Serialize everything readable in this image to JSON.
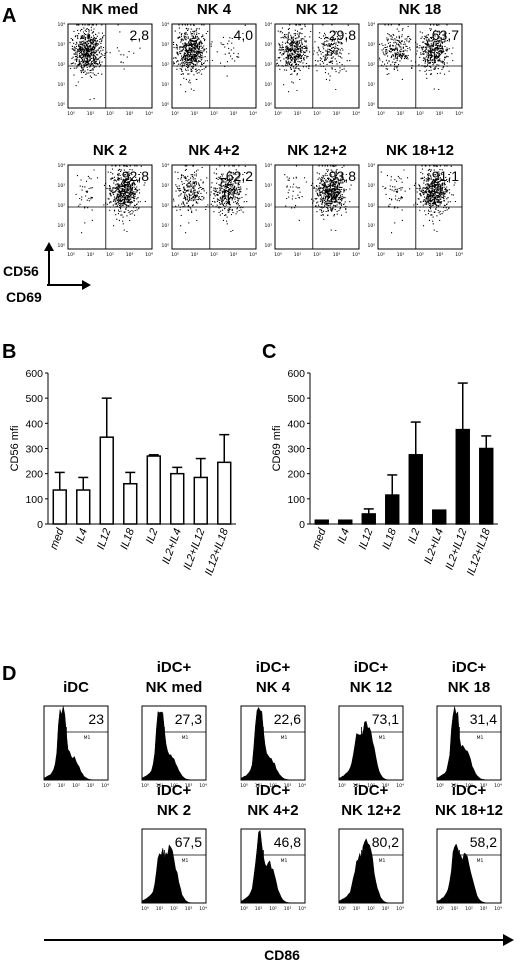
{
  "panel_letters": {
    "a": "A",
    "b": "B",
    "c": "C",
    "d": "D"
  },
  "chart_data": [
    {
      "type": "scatter",
      "panel": "A",
      "xlabel": "CD69",
      "ylabel": "CD56",
      "scale": "log",
      "tick_labels": [
        "10⁰",
        "10¹",
        "10²",
        "10³",
        "10⁴"
      ],
      "plots": [
        {
          "title": "NK med",
          "value": "2,8",
          "color": "#000000"
        },
        {
          "title": "NK 4",
          "value": "4,0",
          "color": "#000000"
        },
        {
          "title": "NK 12",
          "value": "29,8",
          "color": "#000000"
        },
        {
          "title": "NK 18",
          "value": "63,7",
          "color": "#000000"
        },
        {
          "title": "NK 2",
          "value": "92,8",
          "color": "#000000"
        },
        {
          "title": "NK 4+2",
          "value": "62,2",
          "color": "#000000"
        },
        {
          "title": "NK 12+2",
          "value": "93,8",
          "color": "#000000"
        },
        {
          "title": "NK 18+12",
          "value": "91,1",
          "color": "#000000"
        }
      ]
    },
    {
      "type": "bar",
      "panel": "B",
      "ylabel": "CD56 mfi",
      "categories": [
        "med",
        "IL4",
        "IL12",
        "IL18",
        "IL2",
        "IL2+IL4",
        "IL2+IL12",
        "IL12+IL18"
      ],
      "values": [
        135,
        135,
        345,
        160,
        270,
        200,
        185,
        245
      ],
      "errors": [
        70,
        50,
        155,
        45,
        5,
        25,
        75,
        110
      ],
      "ylim": [
        0,
        600
      ],
      "yticks": [
        0,
        100,
        200,
        300,
        400,
        500,
        600
      ],
      "bar_fill": "#ffffff",
      "bar_stroke": "#000000"
    },
    {
      "type": "bar",
      "panel": "C",
      "ylabel": "CD69 mfi",
      "categories": [
        "med",
        "IL4",
        "IL12",
        "IL18",
        "IL2",
        "IL2+IL4",
        "IL2+IL12",
        "IL12+IL18"
      ],
      "values": [
        15,
        15,
        40,
        115,
        275,
        55,
        375,
        300
      ],
      "errors": [
        0,
        0,
        20,
        80,
        130,
        0,
        185,
        50
      ],
      "ylim": [
        0,
        600
      ],
      "yticks": [
        0,
        100,
        200,
        300,
        400,
        500,
        600
      ],
      "bar_fill": "#000000",
      "bar_stroke": "#000000"
    },
    {
      "type": "histogram",
      "panel": "D",
      "xlabel": "CD86",
      "gate_label": "M1",
      "tick_labels": [
        "10⁰",
        "10¹",
        "10²",
        "10³",
        "10⁴"
      ],
      "plots": [
        {
          "title": [
            "iDC"
          ],
          "value": "23"
        },
        {
          "title": [
            "iDC+",
            "NK med"
          ],
          "value": "27,3"
        },
        {
          "title": [
            "iDC+",
            "NK 4"
          ],
          "value": "22,6"
        },
        {
          "title": [
            "iDC+",
            "NK 12"
          ],
          "value": "73,1"
        },
        {
          "title": [
            "iDC+",
            "NK 18"
          ],
          "value": "31,4"
        },
        {
          "title": [
            "iDC+",
            "NK  2"
          ],
          "value": "67,5"
        },
        {
          "title": [
            "iDC+",
            "NK 4+2"
          ],
          "value": "46,8"
        },
        {
          "title": [
            "iDC+",
            "NK 12+2"
          ],
          "value": "80,2"
        },
        {
          "title": [
            "iDC+",
            "NK 18+12"
          ],
          "value": "58,2"
        }
      ]
    }
  ]
}
